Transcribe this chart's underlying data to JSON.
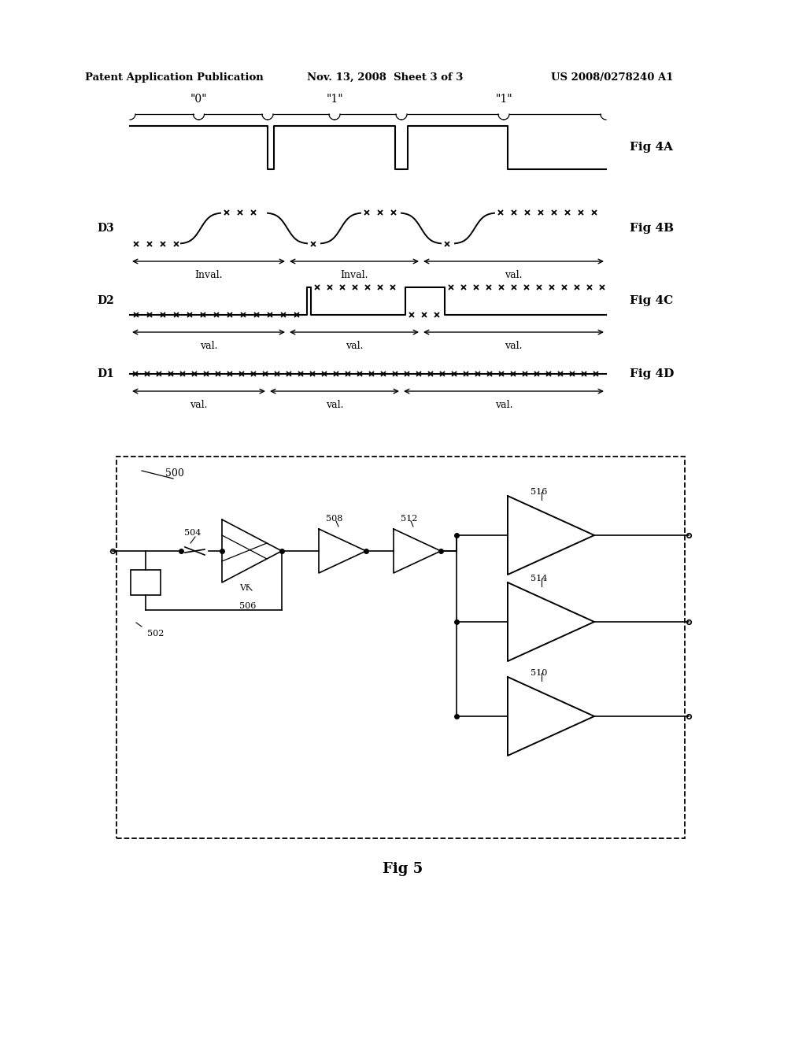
{
  "title_left": "Patent Application Publication",
  "title_mid": "Nov. 13, 2008  Sheet 3 of 3",
  "title_right": "US 2008/0278240 A1",
  "background": "#ffffff",
  "fig_label_4A": "Fig 4A",
  "fig_label_4B": "Fig 4B",
  "fig_label_4C": "Fig 4C",
  "fig_label_4D": "Fig 4D",
  "fig_label_5": "Fig 5",
  "d3_label": "D3",
  "d2_label": "D2",
  "d1_label": "D1",
  "bit0_label": "\"0\"",
  "bit1a_label": "\"1\"",
  "bit1b_label": "\"1\"",
  "inval1": "Inval.",
  "inval2": "Inval.",
  "val1_4b": "val.",
  "val1_4c": "val.",
  "val2_4c": "val.",
  "val3_4c": "val.",
  "val1_4d": "val.",
  "val2_4d": "val.",
  "val3_4d": "val.",
  "comp500": "500",
  "comp502": "502",
  "comp504": "504",
  "comp506": "506",
  "comp508": "508",
  "comp510": "510",
  "comp512": "512",
  "comp514": "514",
  "comp516": "516",
  "comp_vf": "Vf"
}
